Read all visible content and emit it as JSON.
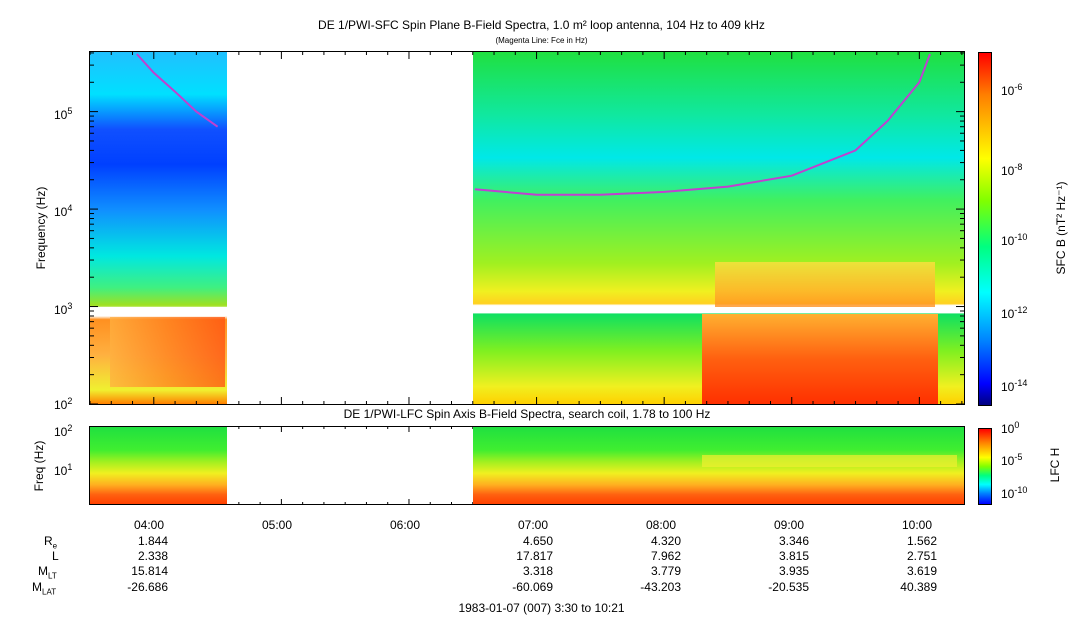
{
  "sfc": {
    "title": "DE 1/PWI-SFC  Spin Plane B-Field Spectra, 1.0 m² loop antenna, 104 Hz to 409 kHz",
    "subtitle": "(Magenta Line: Fce in Hz)",
    "ylabel": "Frequency (Hz)",
    "yticks": [
      {
        "exp": "2",
        "label": "10"
      },
      {
        "exp": "3",
        "label": "10"
      },
      {
        "exp": "4",
        "label": "10"
      },
      {
        "exp": "5",
        "label": "10"
      }
    ],
    "colorbar_label": "SFC B (nT² Hz⁻¹)",
    "colorbar_ticks": [
      {
        "base": "10",
        "exp": "-6"
      },
      {
        "base": "10",
        "exp": "-8"
      },
      {
        "base": "10",
        "exp": "-10"
      },
      {
        "base": "10",
        "exp": "-12"
      },
      {
        "base": "10",
        "exp": "-14"
      }
    ]
  },
  "lfc": {
    "title": "DE 1/PWI-LFC  Spin Axis B-Field Spectra, search coil, 1.78 to 100 Hz",
    "ylabel": "Freq (Hz)",
    "yticks": [
      {
        "exp": "2",
        "label": "10"
      },
      {
        "exp": "1",
        "label": "10"
      }
    ],
    "colorbar_label": "LFC H",
    "colorbar_ticks": [
      {
        "base": "10",
        "exp": "0"
      },
      {
        "base": "10",
        "exp": "-5"
      },
      {
        "base": "10",
        "exp": "-10"
      }
    ]
  },
  "time_axis": {
    "labels": [
      "04:00",
      "05:00",
      "06:00",
      "07:00",
      "08:00",
      "09:00",
      "10:00"
    ]
  },
  "ephemeris": {
    "rows": [
      {
        "name": "R",
        "sub": "e",
        "values": [
          "1.844",
          "",
          "",
          "4.650",
          "4.320",
          "3.346",
          "1.562"
        ]
      },
      {
        "name": "L",
        "sub": "",
        "values": [
          "2.338",
          "",
          "",
          "17.817",
          "7.962",
          "3.815",
          "2.751"
        ]
      },
      {
        "name": "M",
        "sub": "LT",
        "values": [
          "15.814",
          "",
          "",
          "3.318",
          "3.779",
          "3.935",
          "3.619"
        ]
      },
      {
        "name": "M",
        "sub": "LAT",
        "values": [
          "-26.686",
          "",
          "",
          "-60.069",
          "-43.203",
          "-20.535",
          "40.389"
        ]
      }
    ]
  },
  "footer": "1983-01-07 (007) 3:30 to 10:21",
  "chart_data": [
    {
      "type": "heatmap",
      "title": "DE 1/PWI-SFC  Spin Plane B-Field Spectra, 1.0 m² loop antenna, 104 Hz to 409 kHz",
      "ylabel": "Frequency (Hz)",
      "yscale": "log",
      "ylim": [
        100,
        409000
      ],
      "xlim": [
        "03:30",
        "10:21"
      ],
      "data_gaps": [
        [
          "04:36",
          "06:30"
        ]
      ],
      "colorbar": {
        "label": "SFC B (nT² Hz⁻¹)",
        "scale": "log",
        "range": [
          1e-15,
          1e-05
        ]
      },
      "series": [
        {
          "name": "Fce",
          "color": "#c040d0",
          "x": [
            "03:52",
            "04:00",
            "04:10",
            "04:20",
            "04:30",
            "06:31",
            "07:00",
            "07:30",
            "08:00",
            "08:30",
            "09:00",
            "09:30",
            "09:45",
            "10:00",
            "10:05"
          ],
          "y": [
            390000,
            250000,
            160000,
            100000,
            70000,
            16000,
            14000,
            14000,
            15000,
            17000,
            22000,
            40000,
            80000,
            200000,
            390000
          ]
        }
      ]
    },
    {
      "type": "heatmap",
      "title": "DE 1/PWI-LFC  Spin Axis B-Field Spectra, search coil, 1.78 to 100 Hz",
      "ylabel": "Freq (Hz)",
      "yscale": "log",
      "ylim": [
        1.78,
        100
      ],
      "xlim": [
        "03:30",
        "10:21"
      ],
      "data_gaps": [
        [
          "04:36",
          "06:30"
        ]
      ],
      "colorbar": {
        "label": "LFC H",
        "scale": "log",
        "range": [
          1e-12,
          1
        ]
      }
    }
  ]
}
